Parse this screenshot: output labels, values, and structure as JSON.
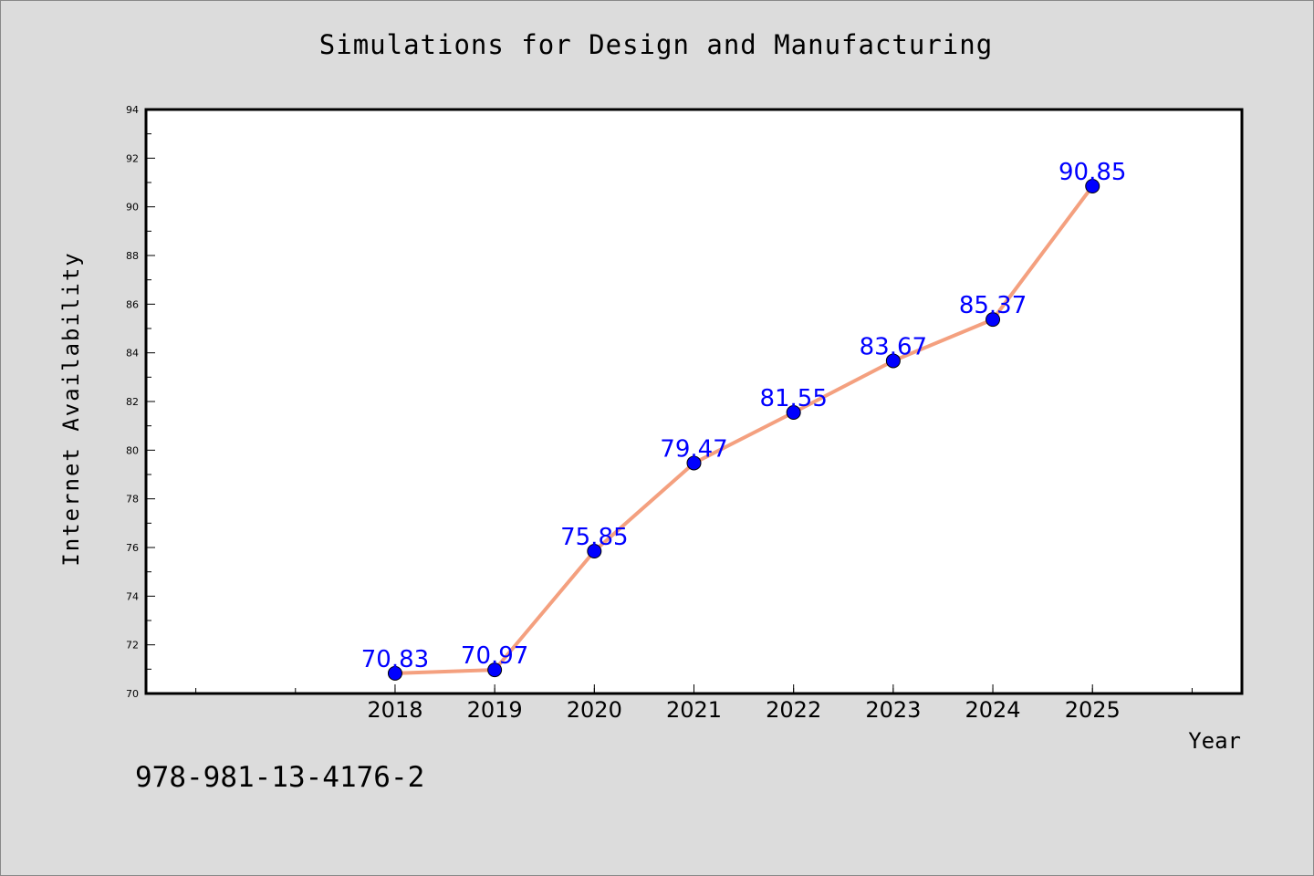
{
  "chart_data": {
    "type": "line",
    "title": "Simulations for Design and Manufacturing",
    "xlabel": "Year",
    "ylabel": "Internet Availability",
    "categories": [
      "2018",
      "2019",
      "2020",
      "2021",
      "2022",
      "2023",
      "2024",
      "2025"
    ],
    "x_range": [
      2015.5,
      2026.5
    ],
    "ylim": [
      70,
      94
    ],
    "y_ticks": [
      "70",
      "72",
      "74",
      "76",
      "78",
      "80",
      "82",
      "84",
      "86",
      "88",
      "90",
      "92",
      "94"
    ],
    "series": [
      {
        "values": [
          70.83,
          70.97,
          75.85,
          79.47,
          81.55,
          83.67,
          85.37,
          90.85
        ],
        "labels": [
          "70.83",
          "70.97",
          "75.85",
          "79.47",
          "81.55",
          "83.67",
          "85.37",
          "90.85"
        ],
        "line_color": "#f4a07f",
        "marker_color": "#0000ff",
        "label_color": "#0000ff"
      }
    ],
    "grid": false,
    "legend": "none"
  },
  "footer": {
    "isbn": "978-981-13-4176-2"
  }
}
